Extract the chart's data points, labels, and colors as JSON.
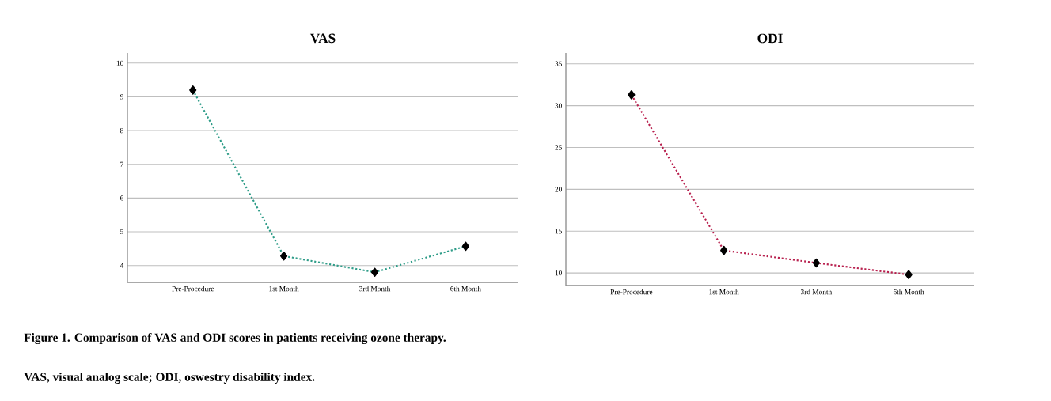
{
  "chart_data": [
    {
      "type": "line",
      "title": "VAS",
      "categories": [
        "Pre-Procedure",
        "1st Month",
        "3rd Month",
        "6th Month"
      ],
      "series": [
        {
          "color": "#2e9c88",
          "values": [
            9.2,
            4.28,
            3.8,
            4.57
          ]
        }
      ],
      "ylim": [
        3.5,
        10.3
      ],
      "yticks": [
        4,
        5,
        6,
        7,
        8,
        9,
        10
      ],
      "grid": "y",
      "marker": "diamond",
      "line_style": "dotted",
      "annotations": [
        "Figure 1. Comparison of VAS and ODI scores in patients receiving ozone therapy.",
        "VAS, visual analog scale; ODI, oswestry disability index."
      ]
    },
    {
      "type": "line",
      "title": "ODI",
      "categories": [
        "Pre-Procedure",
        "1st Month",
        "3rd Month",
        "6th Month"
      ],
      "series": [
        {
          "color": "#b8204e",
          "values": [
            31.3,
            12.7,
            11.2,
            9.8
          ]
        }
      ],
      "ylim": [
        8.5,
        36.3
      ],
      "yticks": [
        10,
        15,
        20,
        25,
        30,
        35
      ],
      "grid": "y",
      "marker": "diamond",
      "line_style": "dotted"
    }
  ]
}
